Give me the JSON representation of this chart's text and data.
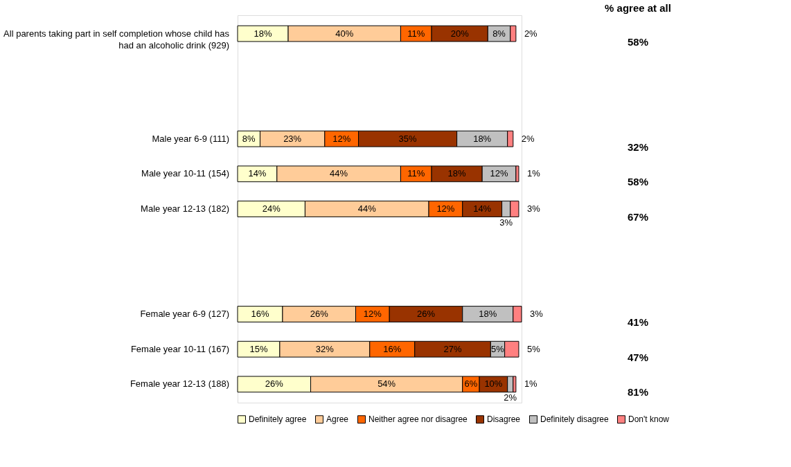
{
  "chart_data": {
    "type": "bar",
    "orientation": "horizontal",
    "stacked": true,
    "legend": "bottom",
    "categories": [
      "All parents taking part in self completion whose child has had an alcoholic drink (929)",
      null,
      null,
      "Male year 6-9 (111)",
      "Male year 10-11 (154)",
      "Male year 12-13 (182)",
      null,
      null,
      "Female year 6-9 (127)",
      "Female year 10-11 (167)",
      "Female year 12-13 (188)"
    ],
    "series": [
      {
        "name": "Definitely agree",
        "color": "#ffffcc",
        "values": [
          18,
          null,
          null,
          8,
          14,
          24,
          null,
          null,
          16,
          15,
          26
        ],
        "value_labels": [
          "18%",
          null,
          null,
          "8%",
          "14%",
          "24%",
          null,
          null,
          "16%",
          "15%",
          "26%"
        ]
      },
      {
        "name": "Agree",
        "color": "#ffcc99",
        "values": [
          40,
          null,
          null,
          23,
          44,
          44,
          null,
          null,
          26,
          32,
          54
        ],
        "value_labels": [
          "40%",
          null,
          null,
          "23%",
          "44%",
          "44%",
          null,
          null,
          "26%",
          "32%",
          "54%"
        ]
      },
      {
        "name": "Neither agree nor disagree",
        "color": "#ff6600",
        "values": [
          11,
          null,
          null,
          12,
          11,
          12,
          null,
          null,
          12,
          16,
          6
        ],
        "value_labels": [
          "11%",
          null,
          null,
          "12%",
          "11%",
          "12%",
          null,
          null,
          "12%",
          "16%",
          "6%"
        ]
      },
      {
        "name": "Disagree",
        "color": "#993300",
        "values": [
          20,
          null,
          null,
          35,
          18,
          14,
          null,
          null,
          26,
          27,
          10
        ],
        "value_labels": [
          "20%",
          null,
          null,
          "35%",
          "18%",
          "14%",
          null,
          null,
          "26%",
          "27%",
          "10%"
        ]
      },
      {
        "name": "Definitely disagree",
        "color": "#c0c0c0",
        "values": [
          8,
          null,
          null,
          18,
          12,
          3,
          null,
          null,
          18,
          5,
          2
        ],
        "value_labels": [
          "8%",
          null,
          null,
          "18%",
          "12%",
          "3%",
          null,
          null,
          "18%",
          "5%",
          "2%"
        ]
      },
      {
        "name": "Don't know",
        "color": "#ff8080",
        "values": [
          2,
          null,
          null,
          2,
          1,
          3,
          null,
          null,
          3,
          5,
          1
        ],
        "value_labels": [
          "2%",
          null,
          null,
          "2%",
          "1%",
          "3%",
          null,
          null,
          "3%",
          "5%",
          "1%"
        ]
      }
    ],
    "annotations": [
      "% agree at all",
      "58%",
      "32%",
      "58%",
      "67%",
      "41%",
      "47%",
      "81%"
    ]
  }
}
